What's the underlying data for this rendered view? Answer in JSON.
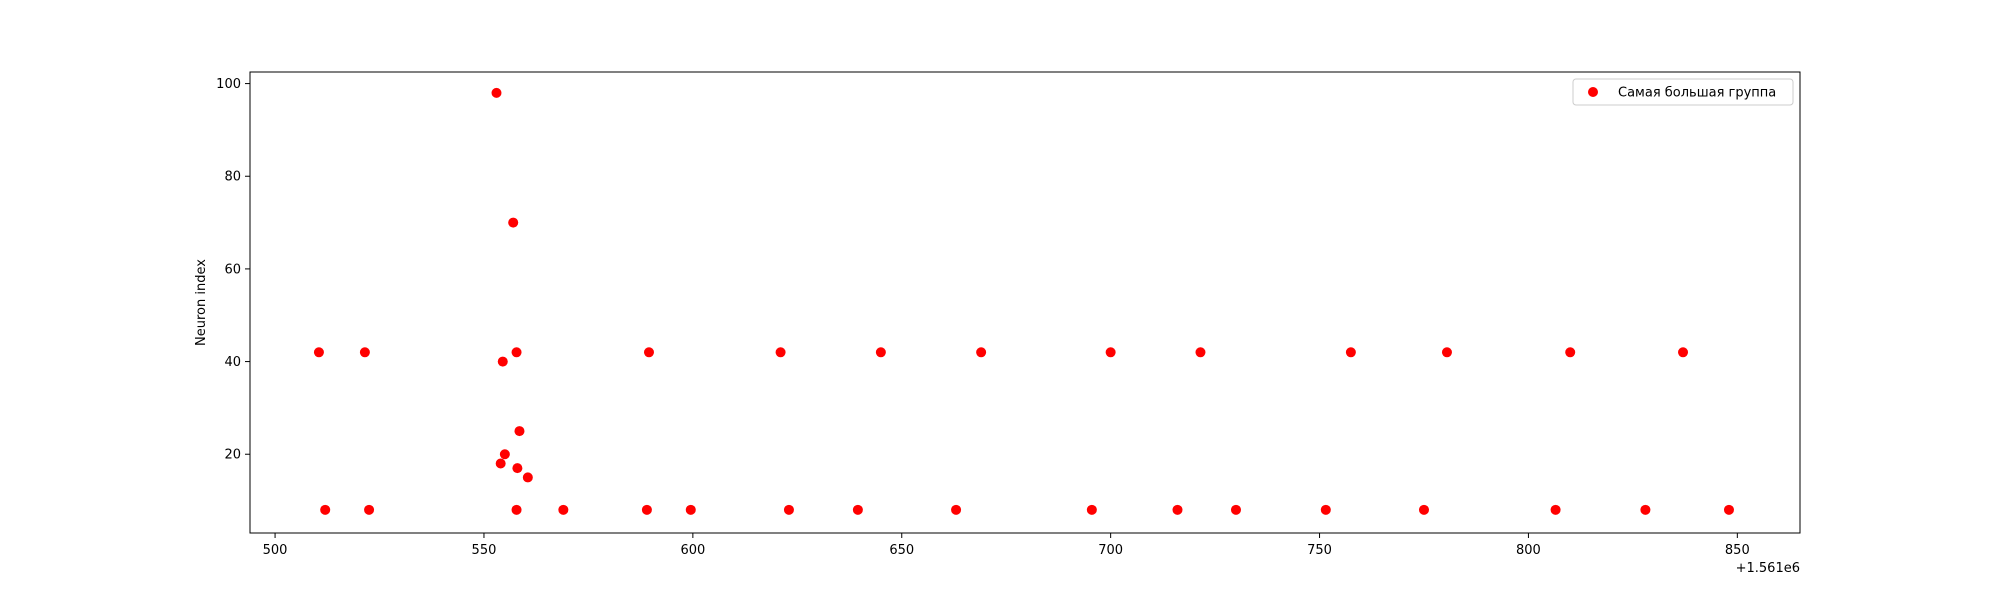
{
  "chart_data": {
    "type": "scatter",
    "title": "",
    "xlabel": "",
    "ylabel": "Neuron index",
    "x_offset_label": "+1.561e6",
    "xlim": [
      494,
      865
    ],
    "ylim": [
      3,
      102.5
    ],
    "xticks": [
      500,
      550,
      600,
      650,
      700,
      750,
      800,
      850
    ],
    "yticks": [
      20,
      40,
      60,
      80,
      100
    ],
    "grid": false,
    "legend_position": "top-right",
    "marker_color": "#ff0000",
    "series": [
      {
        "name": "Самая большая группа",
        "x": [
          510.5,
          521.5,
          512.0,
          522.5,
          553.0,
          557.0,
          557.8,
          554.5,
          558.5,
          555.0,
          554.0,
          558.0,
          560.5,
          557.8,
          569.0,
          589.5,
          589.0,
          599.5,
          621.0,
          623.0,
          639.5,
          645.0,
          663.0,
          669.0,
          695.5,
          700.0,
          716.0,
          721.5,
          730.0,
          751.5,
          757.5,
          775.0,
          780.5,
          806.5,
          810.0,
          828.0,
          837.0,
          848.0
        ],
        "y": [
          42,
          42,
          8,
          8,
          98,
          70,
          42,
          40,
          25,
          20,
          18,
          17,
          15,
          8,
          8,
          42,
          8,
          8,
          42,
          8,
          8,
          42,
          8,
          42,
          8,
          42,
          8,
          42,
          8,
          8,
          42,
          8,
          42,
          8,
          42,
          8,
          42,
          8
        ]
      }
    ]
  }
}
